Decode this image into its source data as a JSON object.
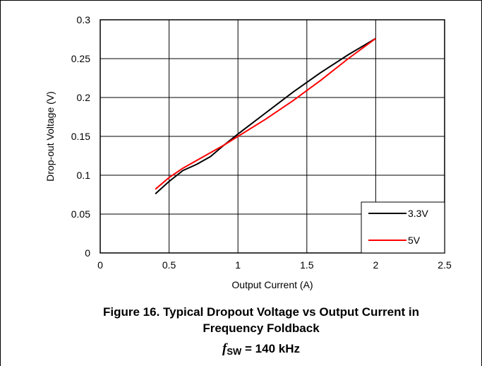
{
  "caption": {
    "line1": "Figure 16. Typical Dropout Voltage vs Output Current in",
    "line2": "Frequency Foldback",
    "fsw_symbol": "f",
    "fsw_sub": "SW",
    "fsw_value": " = 140 kHz"
  },
  "chart_data": {
    "type": "line",
    "xlabel": "Output Current (A)",
    "ylabel": "Drop-out Voltage (V)",
    "xlim": [
      0,
      2.5
    ],
    "ylim": [
      0,
      0.3
    ],
    "xticks": [
      "0",
      "0.5",
      "1",
      "1.5",
      "2",
      "2.5"
    ],
    "yticks": [
      "0",
      "0.05",
      "0.1",
      "0.15",
      "0.2",
      "0.25",
      "0.3"
    ],
    "grid": true,
    "legend_position": "bottom-right",
    "series": [
      {
        "name": "3.3V",
        "color": "#000000",
        "x": [
          0.4,
          0.5,
          0.6,
          0.7,
          0.8,
          0.9,
          1.0,
          1.2,
          1.4,
          1.6,
          1.8,
          2.0
        ],
        "y": [
          0.076,
          0.092,
          0.106,
          0.114,
          0.124,
          0.139,
          0.153,
          0.18,
          0.207,
          0.232,
          0.255,
          0.276
        ]
      },
      {
        "name": "5V",
        "color": "#ff0000",
        "x": [
          0.4,
          0.5,
          0.6,
          0.7,
          0.8,
          0.9,
          1.0,
          1.2,
          1.4,
          1.6,
          1.8,
          2.0
        ],
        "y": [
          0.082,
          0.097,
          0.109,
          0.119,
          0.129,
          0.139,
          0.15,
          0.172,
          0.196,
          0.222,
          0.25,
          0.276
        ]
      }
    ]
  }
}
